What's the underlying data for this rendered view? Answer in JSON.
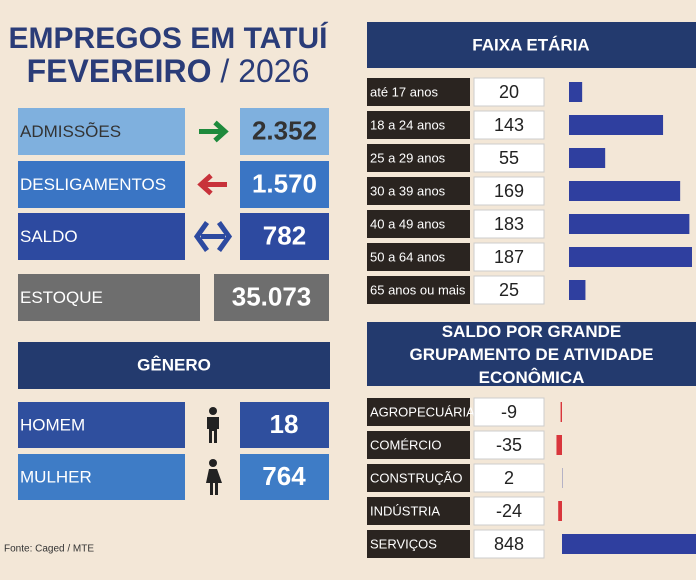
{
  "header": {
    "title": "EMPREGOS EM TATUÍ",
    "month": "FEVEREIRO",
    "year": "/ 2026"
  },
  "summary": [
    {
      "label": "ADMISSÕES",
      "value": "2.352"
    },
    {
      "label": "DESLIGAMENTOS",
      "value": "1.570"
    },
    {
      "label": "SALDO",
      "value": "782"
    },
    {
      "label": "ESTOQUE",
      "value": "35.073"
    }
  ],
  "genero": {
    "title": "GÊNERO",
    "rows": [
      {
        "label": "HOMEM",
        "value": "18"
      },
      {
        "label": "MULHER",
        "value": "764"
      }
    ]
  },
  "chart_data": [
    {
      "type": "bar",
      "orientation": "horizontal",
      "title": "FAIXA ETÁRIA",
      "categories": [
        "até 17 anos",
        "18 a 24 anos",
        "25 a 29 anos",
        "30 a 39 anos",
        "40 a 49 anos",
        "50 a 64 anos",
        "65 anos ou mais"
      ],
      "values": [
        20,
        143,
        55,
        169,
        183,
        187,
        25
      ],
      "color": "#2f3f9f"
    },
    {
      "type": "bar",
      "orientation": "horizontal",
      "title": "SALDO POR GRANDE GRUPAMENTO DE ATIVIDADE ECONÔMICA",
      "categories": [
        "AGROPECUÁRIA",
        "COMÉRCIO",
        "CONSTRUÇÃO",
        "INDÚSTRIA",
        "SERVIÇOS"
      ],
      "values": [
        -9,
        -35,
        2,
        -24,
        848
      ],
      "color": "#2f3f9f",
      "negative_color": "#d9363c"
    }
  ],
  "source": "Fonte: Caged / MTE"
}
